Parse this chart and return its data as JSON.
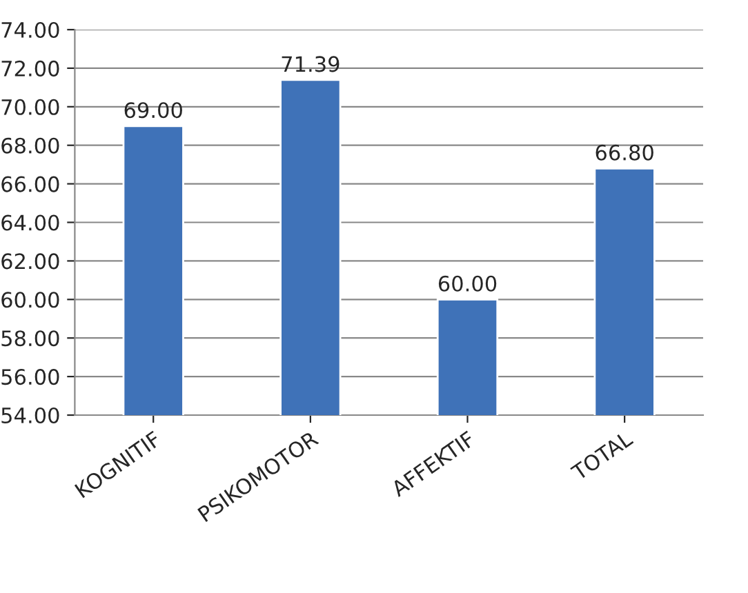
{
  "chart_data": {
    "type": "bar",
    "categories": [
      "KOGNITIF",
      "PSIKOMOTOR",
      "AFFEKTIF",
      "TOTAL"
    ],
    "values": [
      69.0,
      71.39,
      60.0,
      66.8
    ],
    "value_labels": [
      "69.00",
      "71.39",
      "60.00",
      "66.80"
    ],
    "color": "#3f72b8",
    "ylim": [
      54,
      74
    ],
    "yticks": [
      {
        "value": 54,
        "label": "54.00"
      },
      {
        "value": 56,
        "label": "56.00"
      },
      {
        "value": 58,
        "label": "58.00"
      },
      {
        "value": 60,
        "label": "60.00"
      },
      {
        "value": 62,
        "label": "62.00"
      },
      {
        "value": 64,
        "label": "64.00"
      },
      {
        "value": 66,
        "label": "66.00"
      },
      {
        "value": 68,
        "label": "68.00"
      },
      {
        "value": 70,
        "label": "70.00"
      },
      {
        "value": 72,
        "label": "72.00"
      },
      {
        "value": 74,
        "label": "74.00"
      }
    ],
    "grid": "y",
    "legend": false
  }
}
